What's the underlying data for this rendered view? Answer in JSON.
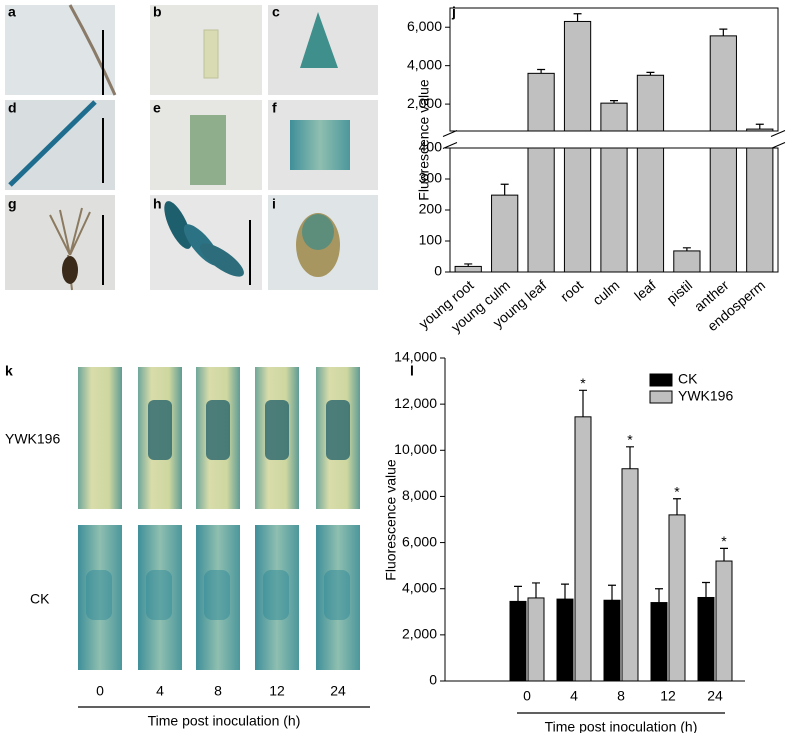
{
  "figure": {
    "panel_labels": [
      "a",
      "b",
      "c",
      "d",
      "e",
      "f",
      "g",
      "h",
      "i",
      "k"
    ],
    "rows": [
      "YWK196",
      "CK"
    ],
    "times": [
      "0",
      "4",
      "8",
      "12",
      "24"
    ],
    "time_label": "Time post inoculation (h)"
  },
  "chart_data": [
    {
      "type": "bar",
      "panel_label": "j",
      "ylabel": "Fluorescence value",
      "categories": [
        "young root",
        "young culm",
        "young leaf",
        "root",
        "culm",
        "leaf",
        "pistil",
        "anther",
        "endosperm"
      ],
      "values": [
        18,
        248,
        3600,
        6300,
        2050,
        3500,
        68,
        5550,
        700
      ],
      "errors": [
        8,
        35,
        200,
        400,
        130,
        150,
        10,
        350,
        250
      ],
      "color": "#c0c0c0",
      "axis_break": true,
      "segments": [
        {
          "ylim": [
            0,
            400
          ],
          "yticks": [
            0,
            100,
            200,
            300,
            400
          ]
        },
        {
          "ylim": [
            600,
            7000
          ],
          "yticks": [
            {
              "value": 2000,
              "label": "2,000"
            },
            {
              "value": 4000,
              "label": "4,000"
            },
            {
              "value": 6000,
              "label": "6,000"
            }
          ]
        }
      ]
    },
    {
      "type": "bar",
      "panel_label": "l",
      "xlabel": "Time post inoculation (h)",
      "ylabel": "Fluorescence value",
      "categories": [
        "0",
        "4",
        "8",
        "12",
        "24"
      ],
      "series": [
        {
          "name": "CK",
          "color": "#000000",
          "values": [
            3450,
            3550,
            3500,
            3400,
            3620
          ],
          "errors": [
            650,
            650,
            650,
            600,
            650
          ]
        },
        {
          "name": "YWK196",
          "color": "#c0c0c0",
          "values": [
            3600,
            11450,
            9200,
            7200,
            5200
          ],
          "errors": [
            650,
            1150,
            950,
            700,
            550
          ],
          "labels": [
            null,
            "*",
            "*",
            "*",
            "*"
          ]
        }
      ],
      "ylim": [
        0,
        14000
      ],
      "yticks": [
        0,
        {
          "value": 2000,
          "label": "2,000"
        },
        {
          "value": 4000,
          "label": "4,000"
        },
        {
          "value": 6000,
          "label": "6,000"
        },
        {
          "value": 8000,
          "label": "8,000"
        },
        {
          "value": 10000,
          "label": "10,000"
        },
        {
          "value": 12000,
          "label": "12,000"
        },
        {
          "value": 14000,
          "label": "14,000"
        }
      ],
      "legend": "upper right"
    }
  ]
}
